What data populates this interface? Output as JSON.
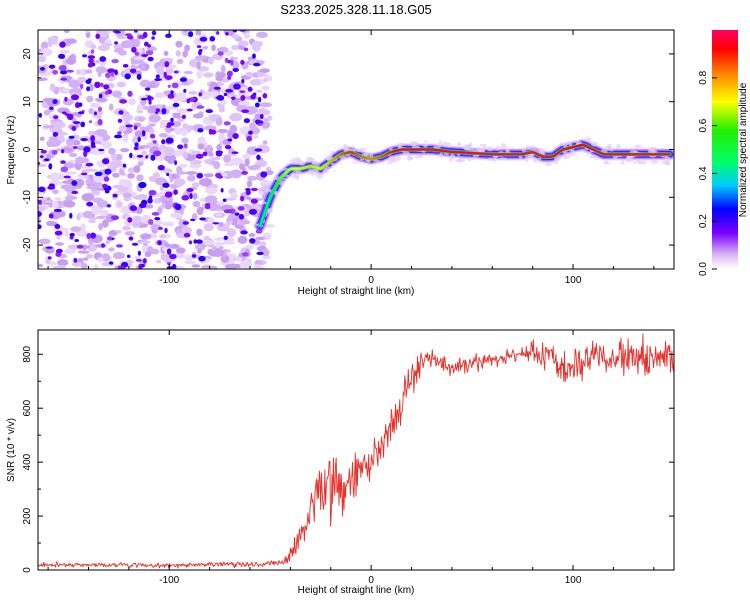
{
  "title": "S233.2025.328.11.18.G05",
  "chart_data": [
    {
      "type": "heatmap",
      "xlabel": "Height of straight line (km)",
      "ylabel": "Frequency (Hz)",
      "xlim": [
        -165,
        150
      ],
      "ylim": [
        -25,
        25
      ],
      "xticks": [
        -100,
        0,
        100
      ],
      "yticks": [
        -20,
        -10,
        0,
        10,
        20
      ],
      "colorbar": {
        "label": "Normalized spectral amplitude",
        "range": [
          0,
          1
        ],
        "ticks": [
          "0.0",
          "0.2",
          "0.4",
          "0.6",
          "0.8"
        ],
        "tick_values": [
          0.0,
          0.2,
          0.4,
          0.6,
          0.8
        ]
      },
      "noise_region_km": [
        -165,
        -52
      ],
      "ridge_frequency": {
        "x": [
          -55,
          -50,
          -45,
          -40,
          -35,
          -30,
          -25,
          -20,
          -15,
          -10,
          -5,
          0,
          5,
          10,
          15,
          20,
          30,
          40,
          60,
          75,
          80,
          85,
          90,
          95,
          100,
          105,
          110,
          115,
          130,
          148
        ],
        "y": [
          -16,
          -10,
          -6,
          -4,
          -4,
          -3.5,
          -4,
          -2.5,
          -1,
          -0.5,
          -1.5,
          -2,
          -1.5,
          -0.5,
          0,
          0,
          0,
          -0.5,
          -1,
          -1,
          -0.5,
          -1.5,
          -1.5,
          0,
          0.5,
          1,
          0,
          -1,
          -1,
          -1
        ],
        "amplitude": [
          0.45,
          0.5,
          0.62,
          0.68,
          0.72,
          0.75,
          0.72,
          0.78,
          0.85,
          0.9,
          0.85,
          0.82,
          0.85,
          0.9,
          0.95,
          0.95,
          0.95,
          0.95,
          0.97,
          0.97,
          0.97,
          0.96,
          0.96,
          0.95,
          0.95,
          0.92,
          0.95,
          0.97,
          0.97,
          0.97
        ]
      }
    },
    {
      "type": "line",
      "xlabel": "Height of straight line (km)",
      "ylabel": "SNR (10 * v/v)",
      "xlim": [
        -165,
        150
      ],
      "ylim": [
        0,
        890
      ],
      "xticks": [
        -100,
        0,
        100
      ],
      "yticks": [
        0,
        200,
        400,
        600,
        800
      ],
      "color": "#e8302a",
      "series_trend": {
        "x": [
          -165,
          -100,
          -50,
          -42,
          -38,
          -34,
          -30,
          -26,
          -22,
          -18,
          -14,
          -10,
          -5,
          0,
          5,
          10,
          15,
          20,
          25,
          30,
          35,
          40,
          50,
          60,
          70,
          80,
          90,
          100,
          110,
          120,
          130,
          140,
          150
        ],
        "y": [
          20,
          18,
          22,
          30,
          85,
          150,
          230,
          290,
          330,
          340,
          270,
          330,
          370,
          400,
          450,
          540,
          620,
          700,
          770,
          790,
          760,
          745,
          770,
          780,
          800,
          805,
          785,
          760,
          790,
          780,
          790,
          770,
          800
        ]
      },
      "noise_amplitude": {
        "x": [
          -165,
          -45,
          -40,
          -30,
          -20,
          -10,
          0,
          10,
          20,
          30,
          50,
          70,
          90,
          110,
          130,
          150
        ],
        "y": [
          6,
          8,
          25,
          55,
          110,
          80,
          55,
          55,
          50,
          30,
          25,
          25,
          45,
          50,
          60,
          55
        ]
      }
    }
  ]
}
